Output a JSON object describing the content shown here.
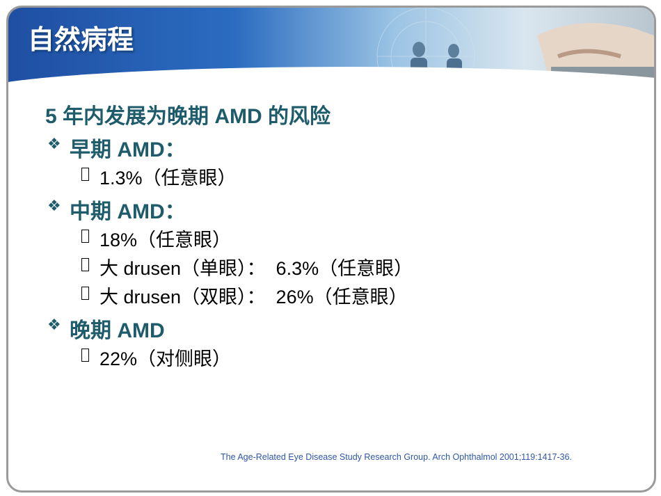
{
  "title": "自然病程",
  "heading": "5 年内发展为晚期 AMD 的风险",
  "sections": [
    {
      "label": "早期 AMD：",
      "items": [
        "1.3%（任意眼）"
      ]
    },
    {
      "label": "中期 AMD：",
      "items": [
        "18%（任意眼）",
        "大 drusen（单眼）：  6.3%（任意眼）",
        "大 drusen（双眼）：  26%（任意眼）"
      ]
    },
    {
      "label": "晚期 AMD",
      "items": [
        "22%（对侧眼）"
      ]
    }
  ],
  "citation": "The Age-Related Eye Disease Study Research Group. Arch Ophthalmol 2001;119:1417-36."
}
